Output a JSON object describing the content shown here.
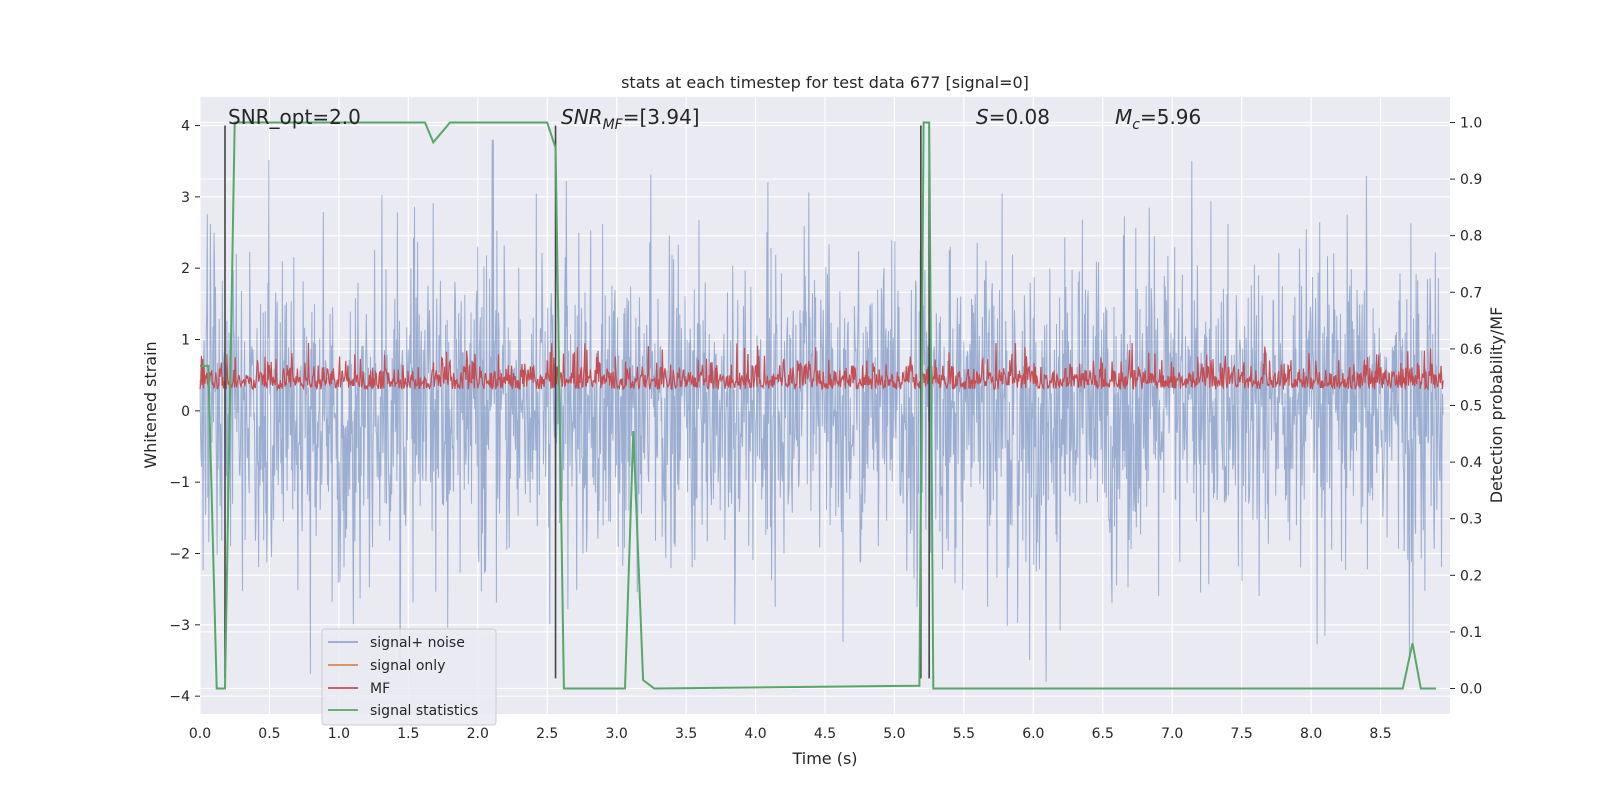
{
  "chart_data": {
    "type": "line",
    "title": "stats at each timestep for test data 677 [signal=0]",
    "xlabel": "Time (s)",
    "ylabel": "Whitened strain",
    "ylabel_right": "Detection probability/MF",
    "xlim": [
      0.0,
      9.0
    ],
    "ylim": [
      -4.25,
      4.4
    ],
    "ylim_right": [
      -0.045,
      1.045
    ],
    "x_ticks": [
      "0.0",
      "0.5",
      "1.0",
      "1.5",
      "2.0",
      "2.5",
      "3.0",
      "3.5",
      "4.0",
      "4.5",
      "5.0",
      "5.5",
      "6.0",
      "6.5",
      "7.0",
      "7.5",
      "8.0",
      "8.5"
    ],
    "y_ticks": [
      "−4",
      "−3",
      "−2",
      "−1",
      "0",
      "1",
      "2",
      "3",
      "4"
    ],
    "y_ticks_right": [
      "0.0",
      "0.1",
      "0.2",
      "0.3",
      "0.4",
      "0.5",
      "0.6",
      "0.7",
      "0.8",
      "0.9",
      "1.0"
    ],
    "grid": true,
    "legend_position": "lower-left",
    "annotations": {
      "snr_opt": "SNR_opt=2.0",
      "snr_mf_main": "SNR",
      "snr_mf_sub": "MF",
      "snr_mf_value": "=[3.94]",
      "s_main": "S",
      "s_value": "=0.08",
      "mc_main": "M",
      "mc_sub": "c",
      "mc_value": "=5.96"
    },
    "vertical_markers": [
      {
        "x": 0.18,
        "y_range": [
          -3.75,
          4.0
        ]
      },
      {
        "x": 2.56,
        "y_range": [
          -3.75,
          4.0
        ]
      },
      {
        "x": 5.19,
        "y_range": [
          -3.75,
          4.0
        ]
      },
      {
        "x": 5.25,
        "y_range": [
          -3.75,
          4.0
        ]
      }
    ],
    "series": [
      {
        "name": "signal+ noise",
        "color": "#4c72b0",
        "style": "dense noise, roughly ±1.5 typical, peaks to ±3.8",
        "approx_envelope": [
          -3.8,
          3.8
        ]
      },
      {
        "name": "signal only",
        "color": "#dd8452",
        "values": []
      },
      {
        "name": "MF",
        "color": "#c44e52",
        "style": "noisy band between 0 and ~0.95",
        "approx_envelope": [
          0.0,
          0.95
        ]
      },
      {
        "name": "signal statistics",
        "color": "#55a868",
        "axis": "right",
        "points": [
          [
            0.0,
            0.57
          ],
          [
            0.06,
            0.57
          ],
          [
            0.12,
            0.0
          ],
          [
            0.18,
            0.0
          ],
          [
            0.25,
            1.0
          ],
          [
            1.62,
            1.0
          ],
          [
            1.68,
            0.965
          ],
          [
            1.8,
            1.0
          ],
          [
            2.5,
            1.0
          ],
          [
            2.56,
            0.955
          ],
          [
            2.62,
            0.0
          ],
          [
            3.06,
            0.0
          ],
          [
            3.12,
            0.455
          ],
          [
            3.19,
            0.015
          ],
          [
            3.27,
            0.0
          ],
          [
            5.18,
            0.005
          ],
          [
            5.21,
            1.0
          ],
          [
            5.25,
            1.0
          ],
          [
            5.28,
            0.0
          ],
          [
            8.66,
            0.0
          ],
          [
            8.73,
            0.08
          ],
          [
            8.79,
            0.0
          ],
          [
            8.9,
            0.0
          ]
        ]
      }
    ]
  }
}
